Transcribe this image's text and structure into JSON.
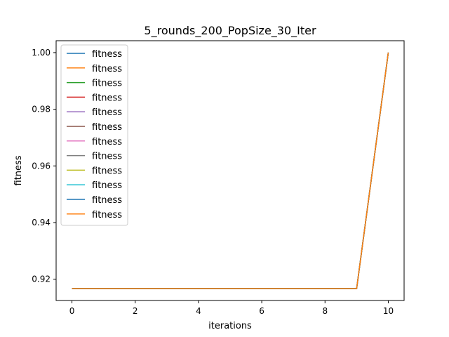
{
  "chart_data": {
    "type": "line",
    "title": "5_rounds_200_PopSize_30_Iter",
    "xlabel": "iterations",
    "ylabel": "fitness",
    "xlim": [
      -0.5,
      10.5
    ],
    "ylim": [
      0.9125,
      1.0042
    ],
    "xticks": [
      0,
      2,
      4,
      6,
      8,
      10
    ],
    "yticks": [
      0.92,
      0.94,
      0.96,
      0.98,
      1.0
    ],
    "ytick_labels": [
      "0.92",
      "0.94",
      "0.96",
      "0.98",
      "1.00"
    ],
    "grid": false,
    "legend_position": "upper-left",
    "x": [
      0,
      1,
      2,
      3,
      4,
      5,
      6,
      7,
      8,
      9,
      10
    ],
    "series": [
      {
        "name": "fitness",
        "color": "#1f77b4",
        "values": [
          0.9167,
          0.9167,
          0.9167,
          0.9167,
          0.9167,
          0.9167,
          0.9167,
          0.9167,
          0.9167,
          0.9167,
          1.0
        ]
      },
      {
        "name": "fitness",
        "color": "#ff7f0e",
        "values": [
          0.9167,
          0.9167,
          0.9167,
          0.9167,
          0.9167,
          0.9167,
          0.9167,
          0.9167,
          0.9167,
          0.9167,
          1.0
        ]
      },
      {
        "name": "fitness",
        "color": "#2ca02c",
        "values": [
          0.9167,
          0.9167,
          0.9167,
          0.9167,
          0.9167,
          0.9167,
          0.9167,
          0.9167,
          0.9167,
          0.9167,
          1.0
        ]
      },
      {
        "name": "fitness",
        "color": "#d62728",
        "values": [
          0.9167,
          0.9167,
          0.9167,
          0.9167,
          0.9167,
          0.9167,
          0.9167,
          0.9167,
          0.9167,
          0.9167,
          1.0
        ]
      },
      {
        "name": "fitness",
        "color": "#9467bd",
        "values": [
          0.9167,
          0.9167,
          0.9167,
          0.9167,
          0.9167,
          0.9167,
          0.9167,
          0.9167,
          0.9167,
          0.9167,
          1.0
        ]
      },
      {
        "name": "fitness",
        "color": "#8c564b",
        "values": [
          0.9167,
          0.9167,
          0.9167,
          0.9167,
          0.9167,
          0.9167,
          0.9167,
          0.9167,
          0.9167,
          0.9167,
          1.0
        ]
      },
      {
        "name": "fitness",
        "color": "#e377c2",
        "values": [
          0.9167,
          0.9167,
          0.9167,
          0.9167,
          0.9167,
          0.9167,
          0.9167,
          0.9167,
          0.9167,
          0.9167,
          1.0
        ]
      },
      {
        "name": "fitness",
        "color": "#7f7f7f",
        "values": [
          0.9167,
          0.9167,
          0.9167,
          0.9167,
          0.9167,
          0.9167,
          0.9167,
          0.9167,
          0.9167,
          0.9167,
          1.0
        ]
      },
      {
        "name": "fitness",
        "color": "#bcbd22",
        "values": [
          0.9167,
          0.9167,
          0.9167,
          0.9167,
          0.9167,
          0.9167,
          0.9167,
          0.9167,
          0.9167,
          0.9167,
          1.0
        ]
      },
      {
        "name": "fitness",
        "color": "#17becf",
        "values": [
          0.9167,
          0.9167,
          0.9167,
          0.9167,
          0.9167,
          0.9167,
          0.9167,
          0.9167,
          0.9167,
          0.9167,
          1.0
        ]
      },
      {
        "name": "fitness",
        "color": "#1f77b4",
        "values": [
          0.9167,
          0.9167,
          0.9167,
          0.9167,
          0.9167,
          0.9167,
          0.9167,
          0.9167,
          0.9167,
          0.9167,
          1.0
        ]
      },
      {
        "name": "fitness",
        "color": "#ff7f0e",
        "values": [
          0.9167,
          0.9167,
          0.9167,
          0.9167,
          0.9167,
          0.9167,
          0.9167,
          0.9167,
          0.9167,
          0.9167,
          1.0
        ]
      }
    ]
  }
}
